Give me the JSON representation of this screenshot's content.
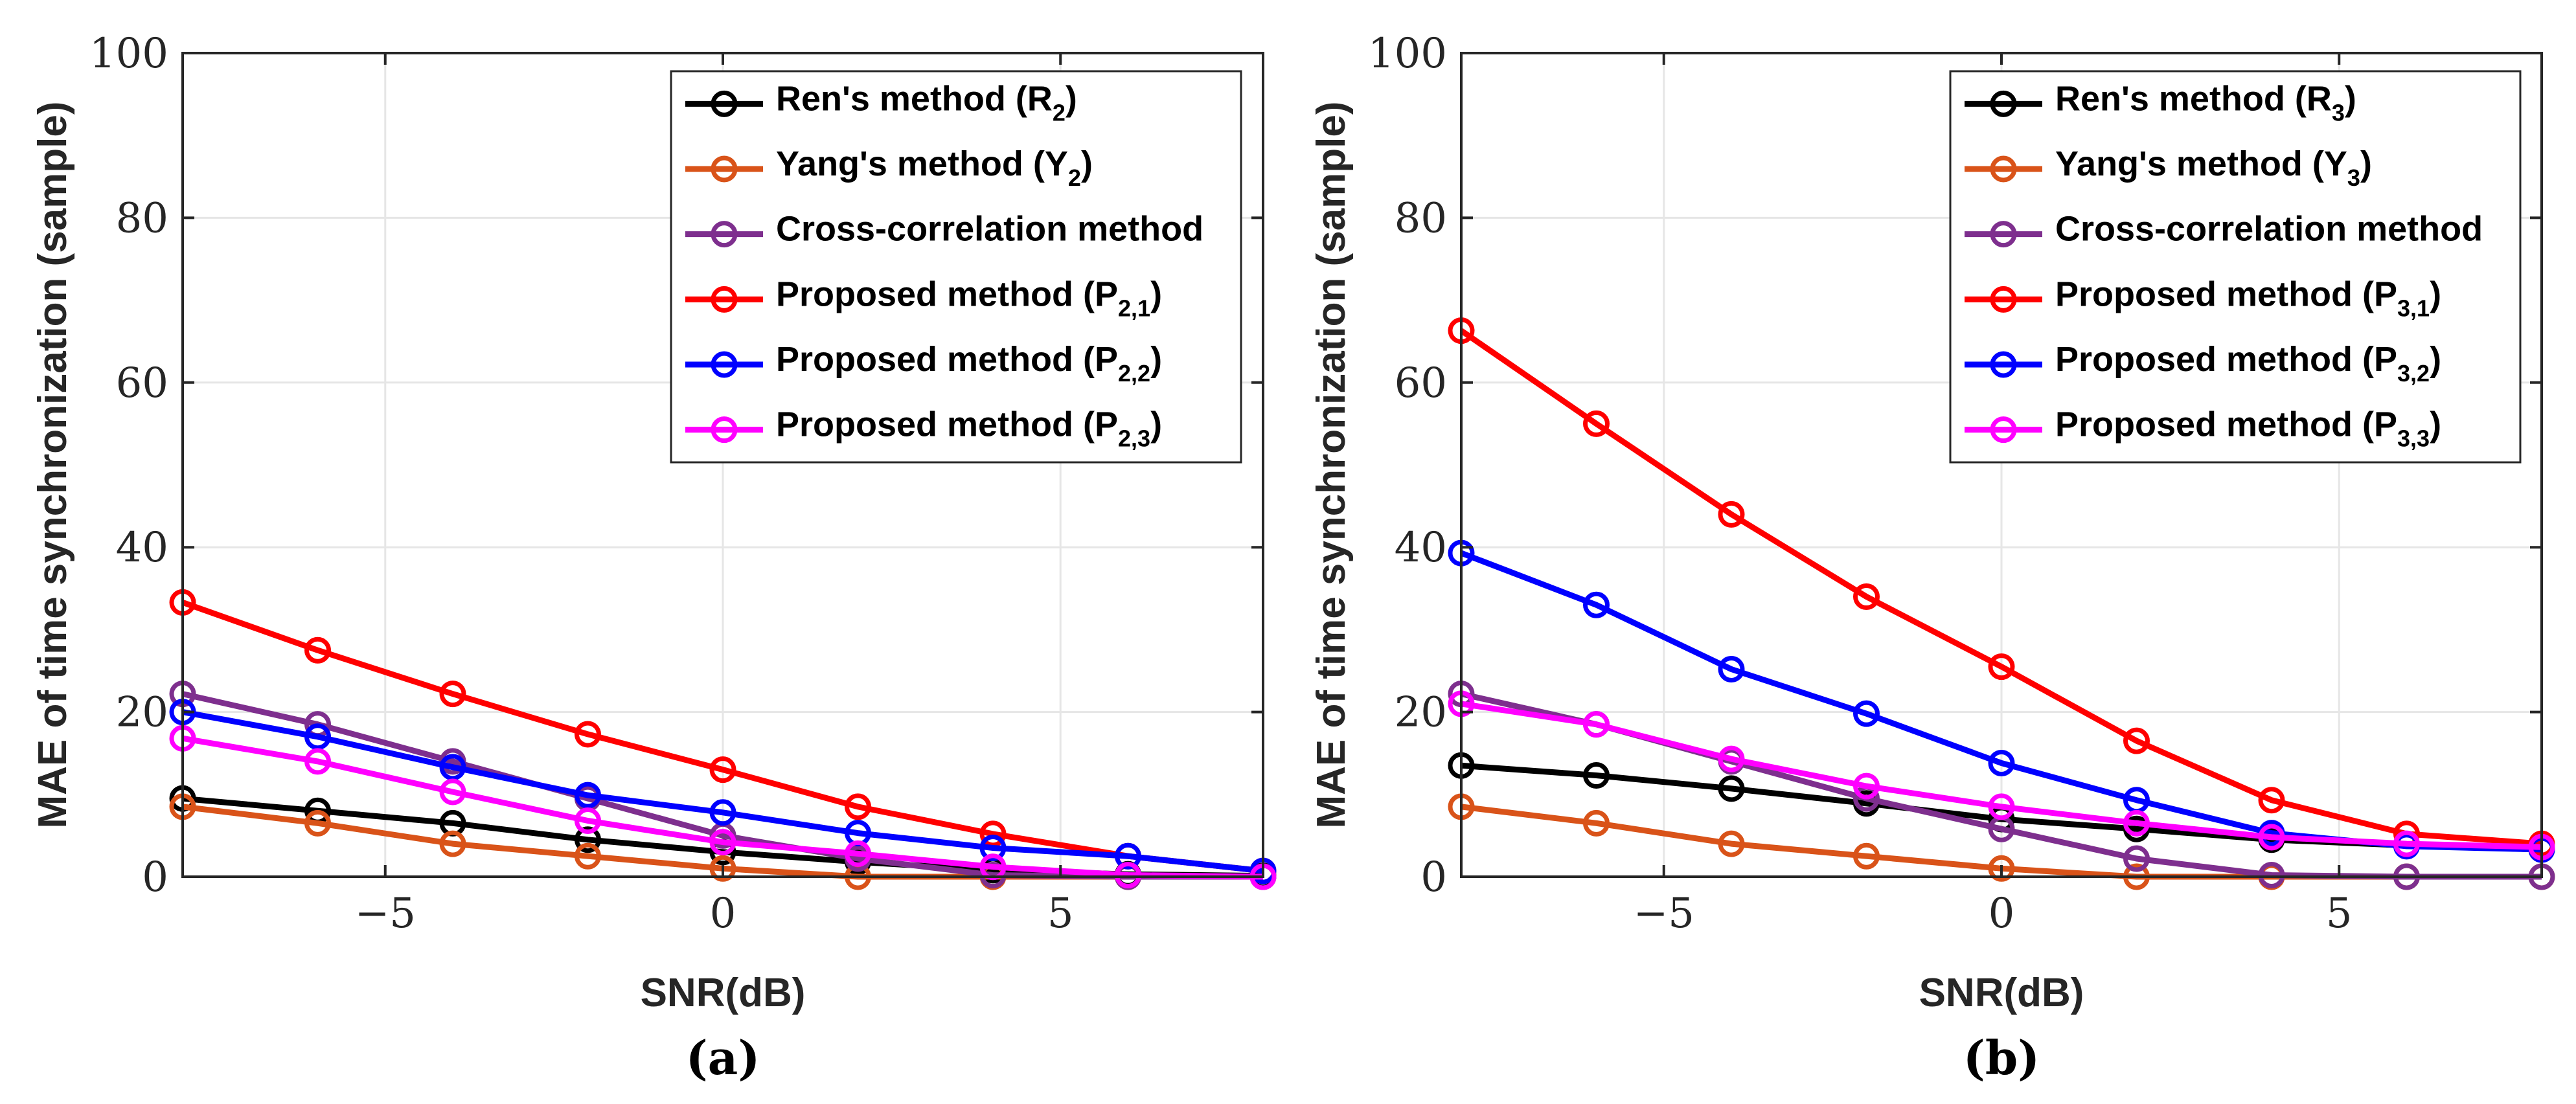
{
  "chart_data": [
    {
      "type": "line",
      "caption": "(a)",
      "xlabel": "SNR(dB)",
      "ylabel": "MAE of time synchronization (sample)",
      "xlim": [
        -8,
        8
      ],
      "ylim": [
        0,
        100
      ],
      "xticks": [
        -5,
        0,
        5
      ],
      "xtick_labels": [
        "−5",
        "0",
        "5"
      ],
      "yticks": [
        0,
        20,
        40,
        60,
        80,
        100
      ],
      "ytick_labels": [
        "0",
        "20",
        "40",
        "60",
        "80",
        "100"
      ],
      "grid": true,
      "legend_position": "top-right",
      "x": [
        -8,
        -6,
        -4,
        -2,
        0,
        2,
        4,
        6,
        8
      ],
      "series": [
        {
          "name": "Ren's method",
          "legend_main": "Ren's method (R",
          "legend_sub": "2",
          "legend_end": ")",
          "color": "#000000",
          "values": [
            9.5,
            8,
            6.5,
            4.5,
            3,
            1.8,
            0.8,
            0.3,
            0.1
          ]
        },
        {
          "name": "Yang's method",
          "legend_main": "Yang's method (Y",
          "legend_sub": "2",
          "legend_end": ")",
          "color": "#D95319",
          "values": [
            8.5,
            6.5,
            4,
            2.5,
            1,
            0,
            0,
            0,
            0
          ]
        },
        {
          "name": "Cross-correlation method",
          "legend_main": "Cross-correlation method",
          "legend_sub": "",
          "legend_end": "",
          "color": "#7E2F8E",
          "values": [
            22.2,
            18.5,
            14,
            9.5,
            5,
            2.2,
            0.2,
            0,
            0
          ]
        },
        {
          "name": "Proposed method (P2,1)",
          "legend_main": "Proposed method (P",
          "legend_sub": "2,1",
          "legend_end": ")",
          "color": "#FF0000",
          "values": [
            33.3,
            27.5,
            22.2,
            17.3,
            13,
            8.5,
            5.2,
            2.5,
            0.7
          ]
        },
        {
          "name": "Proposed method (P2,2)",
          "legend_main": "Proposed method (P",
          "legend_sub": "2,2",
          "legend_end": ")",
          "color": "#0000FF",
          "values": [
            20,
            17,
            13.3,
            9.9,
            7.8,
            5.3,
            3.5,
            2.5,
            0.7
          ]
        },
        {
          "name": "Proposed method (P2,3)",
          "legend_main": "Proposed method (P",
          "legend_sub": "2,3",
          "legend_end": ")",
          "color": "#FF00FF",
          "values": [
            16.8,
            14,
            10.3,
            6.8,
            4.2,
            2.8,
            1.2,
            0.2,
            0
          ]
        }
      ]
    },
    {
      "type": "line",
      "caption": "(b)",
      "xlabel": "SNR(dB)",
      "ylabel": "MAE of time synchronization (sample)",
      "xlim": [
        -8,
        8
      ],
      "ylim": [
        0,
        100
      ],
      "xticks": [
        -5,
        0,
        5
      ],
      "xtick_labels": [
        "−5",
        "0",
        "5"
      ],
      "yticks": [
        0,
        20,
        40,
        60,
        80,
        100
      ],
      "ytick_labels": [
        "0",
        "20",
        "40",
        "60",
        "80",
        "100"
      ],
      "grid": true,
      "legend_position": "top-right",
      "x": [
        -8,
        -6,
        -4,
        -2,
        0,
        2,
        4,
        6,
        8
      ],
      "series": [
        {
          "name": "Ren's method",
          "legend_main": "Ren's method (R",
          "legend_sub": "3",
          "legend_end": ")",
          "color": "#000000",
          "values": [
            13.5,
            12.3,
            10.7,
            8.9,
            7,
            5.8,
            4.5,
            3.8,
            3.3
          ]
        },
        {
          "name": "Yang's method",
          "legend_main": "Yang's method (Y",
          "legend_sub": "3",
          "legend_end": ")",
          "color": "#D95319",
          "values": [
            8.5,
            6.5,
            4,
            2.5,
            1,
            0,
            0,
            0,
            0
          ]
        },
        {
          "name": "Cross-correlation method",
          "legend_main": "Cross-correlation method",
          "legend_sub": "",
          "legend_end": "",
          "color": "#7E2F8E",
          "values": [
            22.2,
            18.5,
            14,
            9.5,
            5.8,
            2.2,
            0.2,
            0,
            0
          ]
        },
        {
          "name": "Proposed method (P3,1)",
          "legend_main": "Proposed method (P",
          "legend_sub": "3,1",
          "legend_end": ")",
          "color": "#FF0000",
          "values": [
            66.3,
            55,
            44,
            34,
            25.5,
            16.5,
            9.3,
            5.2,
            4
          ]
        },
        {
          "name": "Proposed method (P3,2)",
          "legend_main": "Proposed method (P",
          "legend_sub": "3,2",
          "legend_end": ")",
          "color": "#0000FF",
          "values": [
            39.3,
            33,
            25.2,
            19.8,
            13.8,
            9.3,
            5.3,
            3.7,
            3.3
          ]
        },
        {
          "name": "Proposed method (P3,3)",
          "legend_main": "Proposed method (P",
          "legend_sub": "3,3",
          "legend_end": ")",
          "color": "#FF00FF",
          "values": [
            21,
            18.5,
            14.3,
            11,
            8.5,
            6.5,
            4.8,
            4,
            3.6
          ]
        }
      ]
    }
  ]
}
